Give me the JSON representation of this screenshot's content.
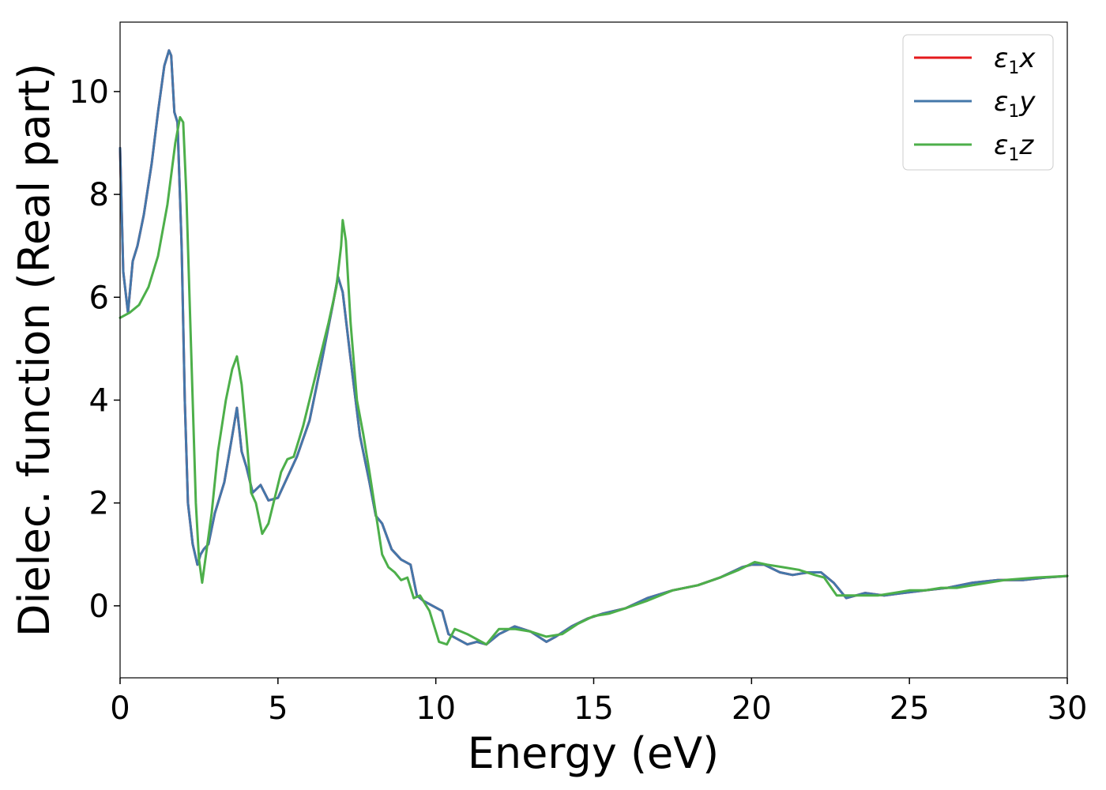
{
  "chart_data": {
    "type": "line",
    "title": "",
    "xlabel": "Energy (eV)",
    "ylabel": "Dielec. function (Real part)",
    "xlim": [
      0,
      30
    ],
    "ylim": [
      -1.4,
      11.35
    ],
    "xticks": [
      0,
      5,
      10,
      15,
      20,
      25,
      30
    ],
    "yticks": [
      0,
      2,
      4,
      6,
      8,
      10
    ],
    "grid": false,
    "legend_position": "top-right",
    "series": [
      {
        "name": "ε₁x",
        "legend_base": "ε",
        "legend_sub": "1",
        "legend_var": "x",
        "color": "#e41a1c",
        "x": [
          0,
          0.1,
          0.25,
          0.4,
          0.55,
          0.75,
          1.0,
          1.2,
          1.4,
          1.55,
          1.62,
          1.72,
          1.82,
          1.95,
          2.05,
          2.15,
          2.3,
          2.45,
          2.55,
          2.65,
          2.8,
          3.0,
          3.3,
          3.55,
          3.7,
          3.85,
          4.0,
          4.2,
          4.45,
          4.7,
          5.0,
          5.3,
          5.6,
          6.0,
          6.4,
          6.75,
          6.9,
          7.05,
          7.3,
          7.6,
          7.9,
          8.1,
          8.3,
          8.6,
          8.9,
          9.2,
          9.4,
          9.6,
          9.9,
          10.2,
          10.4,
          10.7,
          11.0,
          11.3,
          11.6,
          12.0,
          12.5,
          13.0,
          13.5,
          13.8,
          14.3,
          14.8,
          15.3,
          16.0,
          16.7,
          17.5,
          18.3,
          19.0,
          19.7,
          20.0,
          20.4,
          20.9,
          21.3,
          21.8,
          22.2,
          22.6,
          23.0,
          23.3,
          23.6,
          24.2,
          24.8,
          25.5,
          26.2,
          27.0,
          27.8,
          28.6,
          29.3,
          30.0
        ],
        "values": [
          8.9,
          6.5,
          5.7,
          6.7,
          7.0,
          7.6,
          8.6,
          9.6,
          10.5,
          10.8,
          10.7,
          9.6,
          9.4,
          7.0,
          4.0,
          2.0,
          1.2,
          0.8,
          1.0,
          1.1,
          1.2,
          1.8,
          2.4,
          3.3,
          3.85,
          3.0,
          2.7,
          2.2,
          2.35,
          2.05,
          2.1,
          2.5,
          2.9,
          3.6,
          4.8,
          5.9,
          6.4,
          6.1,
          4.8,
          3.3,
          2.4,
          1.75,
          1.6,
          1.1,
          0.9,
          0.8,
          0.2,
          0.1,
          0.0,
          -0.1,
          -0.55,
          -0.65,
          -0.75,
          -0.7,
          -0.75,
          -0.55,
          -0.4,
          -0.5,
          -0.7,
          -0.6,
          -0.4,
          -0.25,
          -0.15,
          -0.05,
          0.15,
          0.3,
          0.4,
          0.55,
          0.75,
          0.8,
          0.8,
          0.65,
          0.6,
          0.65,
          0.65,
          0.45,
          0.15,
          0.2,
          0.25,
          0.2,
          0.25,
          0.3,
          0.35,
          0.45,
          0.5,
          0.5,
          0.55,
          0.58
        ]
      },
      {
        "name": "ε₁y",
        "legend_base": "ε",
        "legend_sub": "1",
        "legend_var": "y",
        "color": "#4477aa",
        "x": [
          0,
          0.1,
          0.25,
          0.4,
          0.55,
          0.75,
          1.0,
          1.2,
          1.4,
          1.55,
          1.62,
          1.72,
          1.82,
          1.95,
          2.05,
          2.15,
          2.3,
          2.45,
          2.55,
          2.65,
          2.8,
          3.0,
          3.3,
          3.55,
          3.7,
          3.85,
          4.0,
          4.2,
          4.45,
          4.7,
          5.0,
          5.3,
          5.6,
          6.0,
          6.4,
          6.75,
          6.9,
          7.05,
          7.3,
          7.6,
          7.9,
          8.1,
          8.3,
          8.6,
          8.9,
          9.2,
          9.4,
          9.6,
          9.9,
          10.2,
          10.4,
          10.7,
          11.0,
          11.3,
          11.6,
          12.0,
          12.5,
          13.0,
          13.5,
          13.8,
          14.3,
          14.8,
          15.3,
          16.0,
          16.7,
          17.5,
          18.3,
          19.0,
          19.7,
          20.0,
          20.4,
          20.9,
          21.3,
          21.8,
          22.2,
          22.6,
          23.0,
          23.3,
          23.6,
          24.2,
          24.8,
          25.5,
          26.2,
          27.0,
          27.8,
          28.6,
          29.3,
          30.0
        ],
        "values": [
          8.9,
          6.5,
          5.7,
          6.7,
          7.0,
          7.6,
          8.6,
          9.6,
          10.5,
          10.8,
          10.7,
          9.6,
          9.4,
          7.0,
          4.0,
          2.0,
          1.2,
          0.8,
          1.0,
          1.1,
          1.2,
          1.8,
          2.4,
          3.3,
          3.85,
          3.0,
          2.7,
          2.2,
          2.35,
          2.05,
          2.1,
          2.5,
          2.9,
          3.6,
          4.8,
          5.9,
          6.4,
          6.1,
          4.8,
          3.3,
          2.4,
          1.75,
          1.6,
          1.1,
          0.9,
          0.8,
          0.2,
          0.1,
          0.0,
          -0.1,
          -0.55,
          -0.65,
          -0.75,
          -0.7,
          -0.75,
          -0.55,
          -0.4,
          -0.5,
          -0.7,
          -0.6,
          -0.4,
          -0.25,
          -0.15,
          -0.05,
          0.15,
          0.3,
          0.4,
          0.55,
          0.75,
          0.8,
          0.8,
          0.65,
          0.6,
          0.65,
          0.65,
          0.45,
          0.15,
          0.2,
          0.25,
          0.2,
          0.25,
          0.3,
          0.35,
          0.45,
          0.5,
          0.5,
          0.55,
          0.58
        ]
      },
      {
        "name": "ε₁z",
        "legend_base": "ε",
        "legend_sub": "1",
        "legend_var": "z",
        "color": "#4daf4a",
        "x": [
          0,
          0.3,
          0.6,
          0.9,
          1.2,
          1.5,
          1.75,
          1.9,
          2.0,
          2.1,
          2.25,
          2.4,
          2.5,
          2.6,
          2.7,
          2.9,
          3.1,
          3.35,
          3.55,
          3.7,
          3.85,
          4.0,
          4.15,
          4.3,
          4.5,
          4.7,
          4.9,
          5.1,
          5.3,
          5.5,
          5.8,
          6.2,
          6.6,
          6.85,
          7.0,
          7.05,
          7.15,
          7.3,
          7.5,
          7.7,
          7.9,
          8.1,
          8.3,
          8.5,
          8.7,
          8.9,
          9.1,
          9.3,
          9.5,
          9.8,
          10.1,
          10.35,
          10.6,
          10.8,
          11.0,
          11.3,
          11.6,
          12.0,
          12.5,
          13.0,
          13.5,
          14.0,
          14.5,
          15.0,
          15.5,
          16.0,
          16.7,
          17.5,
          18.3,
          19.0,
          19.6,
          20.1,
          20.5,
          21.0,
          21.5,
          22.0,
          22.3,
          22.7,
          23.1,
          23.5,
          24.0,
          24.5,
          25.0,
          25.5,
          26.0,
          26.5,
          27.0,
          28.0,
          29.0,
          30.0
        ],
        "values": [
          5.6,
          5.7,
          5.85,
          6.2,
          6.8,
          7.8,
          9.0,
          9.5,
          9.4,
          8.0,
          5.0,
          2.0,
          0.9,
          0.45,
          0.9,
          1.8,
          3.0,
          4.0,
          4.6,
          4.85,
          4.3,
          3.3,
          2.2,
          2.0,
          1.4,
          1.6,
          2.1,
          2.6,
          2.85,
          2.9,
          3.5,
          4.5,
          5.5,
          6.2,
          7.0,
          7.5,
          7.1,
          5.5,
          4.0,
          3.35,
          2.6,
          1.8,
          1.0,
          0.75,
          0.65,
          0.5,
          0.55,
          0.15,
          0.2,
          -0.1,
          -0.7,
          -0.75,
          -0.45,
          -0.5,
          -0.55,
          -0.65,
          -0.75,
          -0.45,
          -0.45,
          -0.5,
          -0.6,
          -0.55,
          -0.35,
          -0.2,
          -0.15,
          -0.05,
          0.1,
          0.3,
          0.4,
          0.55,
          0.7,
          0.85,
          0.8,
          0.75,
          0.7,
          0.6,
          0.55,
          0.2,
          0.2,
          0.2,
          0.2,
          0.25,
          0.3,
          0.3,
          0.35,
          0.35,
          0.4,
          0.5,
          0.55,
          0.58
        ]
      }
    ]
  }
}
